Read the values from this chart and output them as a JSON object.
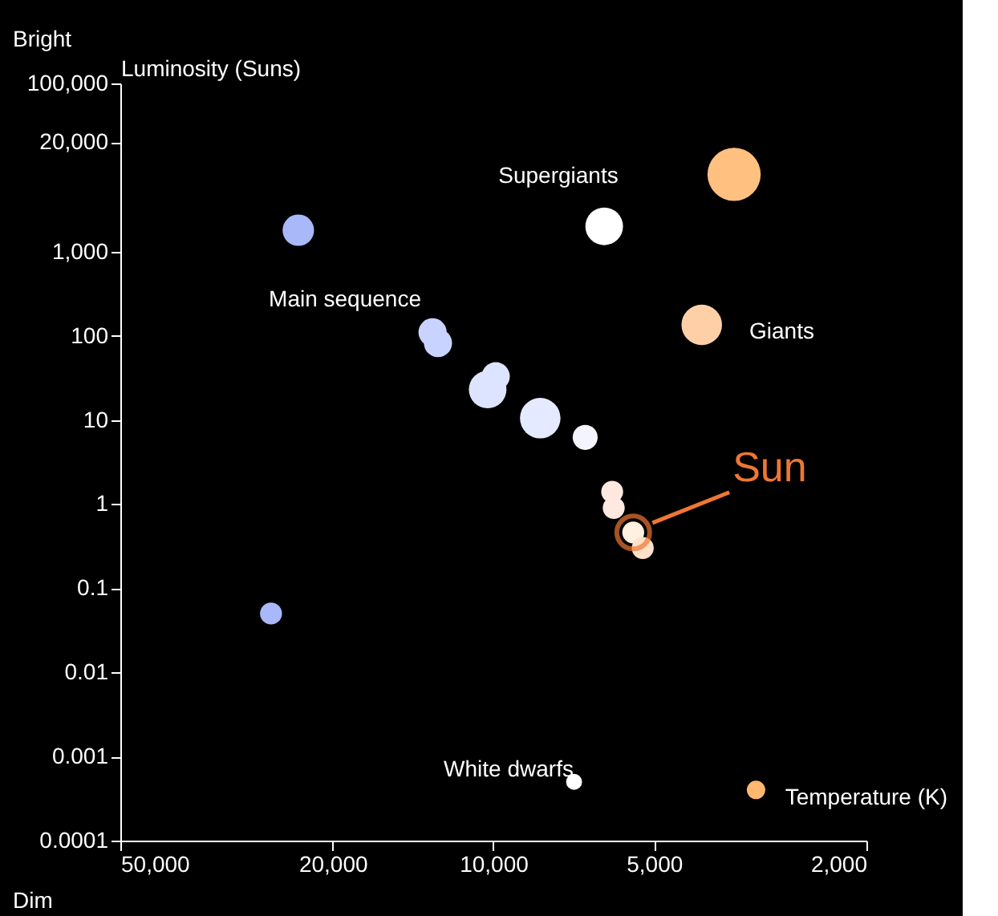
{
  "chart_data": {
    "type": "bubble",
    "xlabel": "Temperature (K)",
    "ylabel": "Luminosity (Suns)",
    "log": "xy",
    "grid": false,
    "xlim": [
      50000,
      2000
    ],
    "xticks": [
      {
        "value": 50000,
        "label": "50,000"
      },
      {
        "value": 20000,
        "label": "20,000"
      },
      {
        "value": 10000,
        "label": "10,000"
      },
      {
        "value": 5000,
        "label": "5,000"
      },
      {
        "value": 2000,
        "label": "2,000"
      }
    ],
    "ylim": [
      0.0001,
      100000
    ],
    "yticks": [
      {
        "value": 100000,
        "label": "100,000"
      },
      {
        "value": 20000,
        "label": "20,000"
      },
      {
        "value": 1000,
        "label": "1,000"
      },
      100,
      10,
      1,
      0.1,
      0.01,
      0.001,
      0.0001
    ],
    "x": [
      23200,
      6200,
      3540,
      4070,
      13000,
      12700,
      9900,
      10250,
      8170,
      6730,
      5990,
      5950,
      5470,
      5250,
      26100,
      7060,
      3220
    ],
    "values": [
      1800,
      2000,
      8300,
      135,
      110,
      82,
      33,
      23,
      10.5,
      6.2,
      1.4,
      0.9,
      0.46,
      0.3,
      0.05,
      0.0005,
      0.0004
    ],
    "sizes": [
      0.35,
      0.5,
      1,
      0.58,
      0.28,
      0.28,
      0.28,
      0.5,
      0.58,
      0.22,
      0.17,
      0.17,
      0.17,
      0.17,
      0.17,
      0.09,
      0.12
    ],
    "colors": [
      "#a8b8f8",
      "#ffffff",
      "#ffc080",
      "#ffd0a8",
      "#c8d4ff",
      "#c8d4ff",
      "#dde4ff",
      "#dde4ff",
      "#e4eaff",
      "#f4f4ff",
      "#ffe8e0",
      "#ffe8e0",
      "#fff0e0",
      "#ffe0c8",
      "#a8b8f8",
      "#ffffff",
      "#ffb870"
    ],
    "annotations": [
      {
        "text": "Sun",
        "x": 5470,
        "y": 0.46
      },
      "Supergiants",
      "Giants",
      "Main sequence",
      "White dwarfs",
      "Bright",
      "Dim"
    ]
  }
}
